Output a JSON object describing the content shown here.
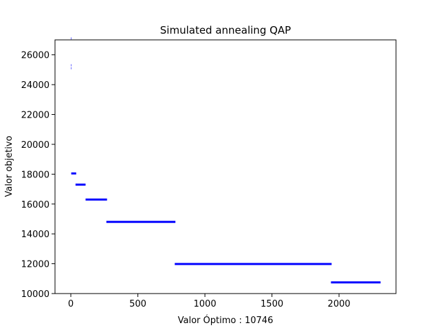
{
  "chart_data": {
    "type": "line",
    "title": "Simulated annealing QAP",
    "xlabel": "Valor Óptimo : 10746",
    "ylabel": "Valor objetivo",
    "xlim": [
      -118,
      2425
    ],
    "ylim": [
      10000,
      27000
    ],
    "xticks": [
      0,
      500,
      1000,
      1500,
      2000
    ],
    "yticks": [
      10000,
      12000,
      14000,
      16000,
      18000,
      20000,
      22000,
      24000,
      26000
    ],
    "xtick_labels": [
      "0",
      "500",
      "1000",
      "1500",
      "2000"
    ],
    "ytick_labels": [
      "10000",
      "12000",
      "14000",
      "16000",
      "18000",
      "20000",
      "22000",
      "24000",
      "26000"
    ],
    "grid": false,
    "legend": "none",
    "color": "#0000ff",
    "series": [
      {
        "segments": [
          [
            [
              0,
              27100
            ],
            [
              3,
              27100
            ]
          ],
          [
            [
              0,
              25300
            ],
            [
              3,
              25300
            ]
          ],
          [
            [
              0,
              25100
            ],
            [
              3,
              25100
            ]
          ],
          [
            [
              3,
              18050
            ],
            [
              40,
              18050
            ]
          ],
          [
            [
              35,
              17300
            ],
            [
              110,
              17300
            ]
          ],
          [
            [
              110,
              16300
            ],
            [
              270,
              16300
            ]
          ],
          [
            [
              265,
              14800
            ],
            [
              780,
              14800
            ]
          ],
          [
            [
              775,
              11980
            ],
            [
              1945,
              11980
            ]
          ],
          [
            [
              1940,
              10746
            ],
            [
              2310,
              10746
            ]
          ]
        ]
      }
    ]
  }
}
